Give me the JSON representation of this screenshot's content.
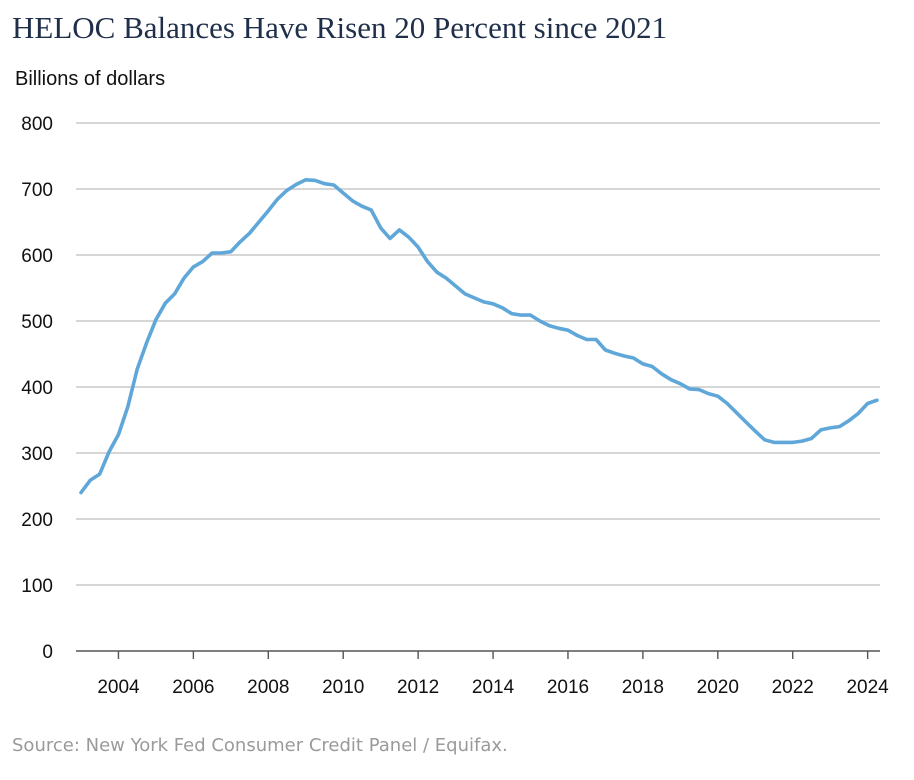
{
  "title": "HELOC Balances Have Risen 20 Percent since 2021",
  "source": "Source: New York Fed Consumer Credit Panel / Equifax.",
  "colors": {
    "line": "#5fa7d8",
    "grid": "#c8c8c8",
    "axis": "#555555",
    "title": "#1f2f4a",
    "source": "#9a9a9a"
  },
  "chart_data": {
    "type": "line",
    "title": "HELOC Balances Have Risen 20 Percent since 2021",
    "ylabel": "Billions of dollars",
    "xlabel": "",
    "xlim": [
      2003.0,
      2024.25
    ],
    "ylim": [
      0,
      800
    ],
    "yticks": [
      0,
      100,
      200,
      300,
      400,
      500,
      600,
      700,
      800
    ],
    "xticks": [
      2004,
      2006,
      2008,
      2010,
      2012,
      2014,
      2016,
      2018,
      2020,
      2022,
      2024
    ],
    "grid": true,
    "legend": "none",
    "series": [
      {
        "x": [
          2003.0,
          2003.25,
          2003.5,
          2003.75,
          2004.0,
          2004.25,
          2004.5,
          2004.75,
          2005.0,
          2005.25,
          2005.5,
          2005.75,
          2006.0,
          2006.25,
          2006.5,
          2006.75,
          2007.0,
          2007.25,
          2007.5,
          2007.75,
          2008.0,
          2008.25,
          2008.5,
          2008.75,
          2009.0,
          2009.25,
          2009.5,
          2009.75,
          2010.0,
          2010.25,
          2010.5,
          2010.75,
          2011.0,
          2011.25,
          2011.5,
          2011.75,
          2012.0,
          2012.25,
          2012.5,
          2012.75,
          2013.0,
          2013.25,
          2013.5,
          2013.75,
          2014.0,
          2014.25,
          2014.5,
          2014.75,
          2015.0,
          2015.25,
          2015.5,
          2015.75,
          2016.0,
          2016.25,
          2016.5,
          2016.75,
          2017.0,
          2017.25,
          2017.5,
          2017.75,
          2018.0,
          2018.25,
          2018.5,
          2018.75,
          2019.0,
          2019.25,
          2019.5,
          2019.75,
          2020.0,
          2020.25,
          2020.5,
          2020.75,
          2021.0,
          2021.25,
          2021.5,
          2021.75,
          2022.0,
          2022.25,
          2022.5,
          2022.75,
          2023.0,
          2023.25,
          2023.5,
          2023.75,
          2024.0,
          2024.25
        ],
        "values": [
          240,
          259,
          268,
          302,
          328,
          370,
          427,
          467,
          502,
          527,
          541,
          565,
          582,
          590,
          603,
          603,
          605,
          620,
          633,
          650,
          667,
          685,
          698,
          707,
          714,
          713,
          708,
          706,
          694,
          682,
          674,
          668,
          641,
          625,
          638,
          627,
          612,
          590,
          574,
          565,
          553,
          541,
          535,
          529,
          526,
          520,
          511,
          509,
          509,
          500,
          493,
          489,
          486,
          478,
          472,
          472,
          456,
          451,
          447,
          444,
          435,
          431,
          420,
          411,
          405,
          397,
          396,
          390,
          386,
          375,
          361,
          347,
          333,
          320,
          316,
          316,
          316,
          318,
          322,
          335,
          338,
          340,
          349,
          360,
          375,
          380
        ]
      }
    ]
  }
}
